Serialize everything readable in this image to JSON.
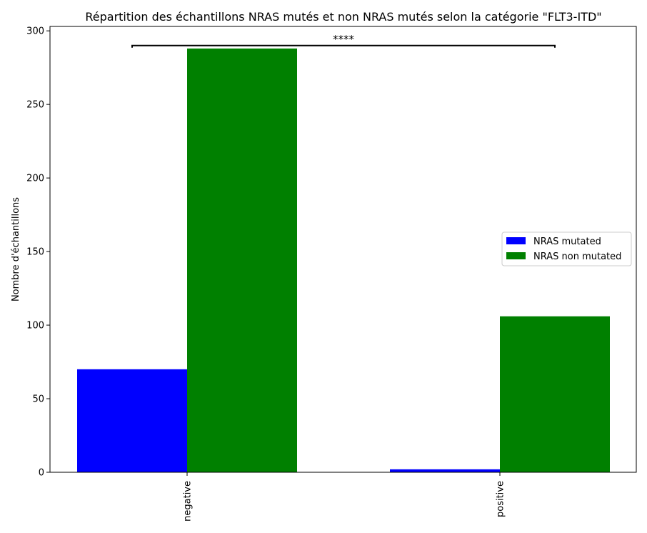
{
  "chart_data": {
    "type": "bar",
    "title": "Répartition des échantillons NRAS mutés et non NRAS mutés selon la catégorie \"FLT3-ITD\"",
    "xlabel": "",
    "ylabel": "Nombre d'échantillons",
    "categories": [
      "negative",
      "positive"
    ],
    "series": [
      {
        "name": "NRAS mutated",
        "color": "#0000ff",
        "values": [
          70,
          2
        ]
      },
      {
        "name": "NRAS non mutated",
        "color": "#008000",
        "values": [
          288,
          106
        ]
      }
    ],
    "ylim": [
      0,
      303
    ],
    "yticks": [
      0,
      50,
      100,
      150,
      200,
      250,
      300
    ],
    "legend_position": "center-right",
    "grid": false,
    "annotation": {
      "text": "****",
      "y": 290
    }
  }
}
